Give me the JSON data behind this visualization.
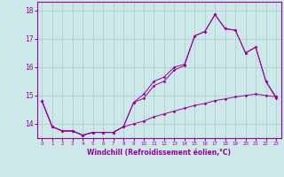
{
  "xlabel": "Windchill (Refroidissement éolien,°C)",
  "x": [
    0,
    1,
    2,
    3,
    4,
    5,
    6,
    7,
    8,
    9,
    10,
    11,
    12,
    13,
    14,
    15,
    16,
    17,
    18,
    19,
    20,
    21,
    22,
    23
  ],
  "main_line": [
    14.8,
    13.9,
    13.75,
    13.75,
    13.6,
    13.7,
    13.7,
    13.7,
    13.9,
    14.75,
    14.9,
    15.35,
    15.5,
    15.9,
    16.05,
    17.1,
    17.25,
    17.85,
    17.35,
    17.3,
    16.5,
    16.7,
    15.5,
    14.9
  ],
  "lower_line": [
    14.8,
    13.9,
    13.75,
    13.75,
    13.6,
    13.7,
    13.7,
    13.7,
    13.9,
    14.0,
    14.1,
    14.25,
    14.35,
    14.45,
    14.55,
    14.65,
    14.72,
    14.82,
    14.88,
    14.95,
    15.0,
    15.05,
    15.0,
    14.95
  ],
  "upper_line": [
    14.8,
    13.9,
    13.75,
    13.75,
    13.6,
    13.7,
    13.7,
    13.7,
    13.9,
    14.75,
    15.05,
    15.5,
    15.65,
    16.0,
    16.1,
    17.1,
    17.25,
    17.85,
    17.35,
    17.3,
    16.5,
    16.7,
    15.5,
    14.95
  ],
  "line_color": "#990099",
  "bg_color": "#cce8e8",
  "grid_color": "#aacccc",
  "ylim": [
    13.5,
    18.3
  ],
  "yticks": [
    14,
    15,
    16,
    17,
    18
  ],
  "xlim": [
    -0.5,
    23.5
  ]
}
